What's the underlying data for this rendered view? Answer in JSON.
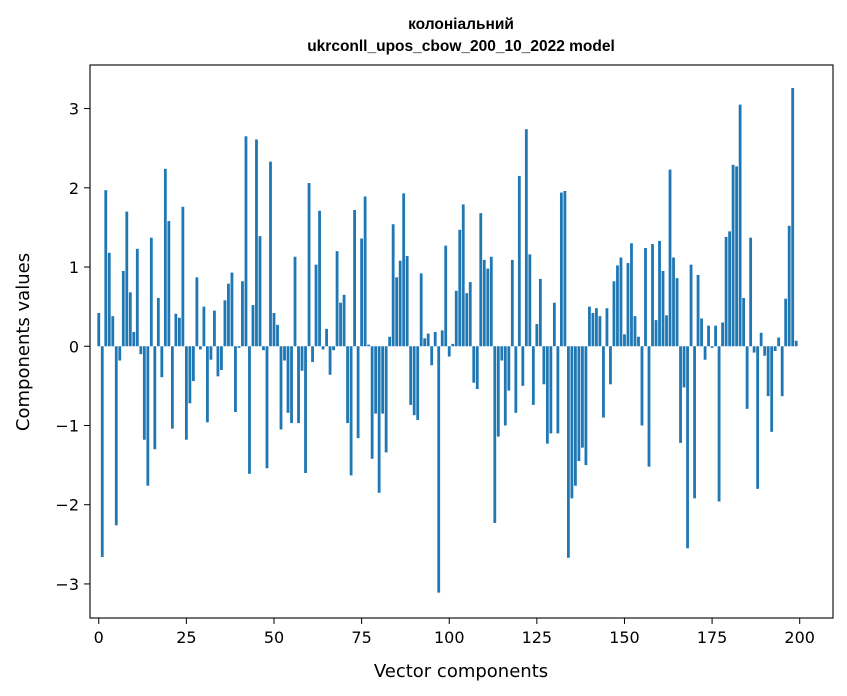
{
  "chart_data": {
    "type": "bar",
    "title": "колоніальний",
    "subtitle": "ukrconll_upos_cbow_200_10_2022 model",
    "xlabel": "Vector components",
    "ylabel": "Components values",
    "xlim": [
      -2.5,
      209.5
    ],
    "ylim": [
      -3.43,
      3.55
    ],
    "xticks": [
      0,
      25,
      50,
      75,
      100,
      125,
      150,
      175,
      200
    ],
    "xtick_labels": [
      "0",
      "25",
      "50",
      "75",
      "100",
      "125",
      "150",
      "175",
      "200"
    ],
    "yticks": [
      -3,
      -2,
      -1,
      0,
      1,
      2,
      3
    ],
    "ytick_labels": [
      "−3",
      "−2",
      "−1",
      "0",
      "1",
      "2",
      "3"
    ],
    "grid": false,
    "legend": "none",
    "color": "#1f77b4",
    "x": [
      0,
      1,
      2,
      3,
      4,
      5,
      6,
      7,
      8,
      9,
      10,
      11,
      12,
      13,
      14,
      15,
      16,
      17,
      18,
      19,
      20,
      21,
      22,
      23,
      24,
      25,
      26,
      27,
      28,
      29,
      30,
      31,
      32,
      33,
      34,
      35,
      36,
      37,
      38,
      39,
      40,
      41,
      42,
      43,
      44,
      45,
      46,
      47,
      48,
      49,
      50,
      51,
      52,
      53,
      54,
      55,
      56,
      57,
      58,
      59,
      60,
      61,
      62,
      63,
      64,
      65,
      66,
      67,
      68,
      69,
      70,
      71,
      72,
      73,
      74,
      75,
      76,
      77,
      78,
      79,
      80,
      81,
      82,
      83,
      84,
      85,
      86,
      87,
      88,
      89,
      90,
      91,
      92,
      93,
      94,
      95,
      96,
      97,
      98,
      99,
      100,
      101,
      102,
      103,
      104,
      105,
      106,
      107,
      108,
      109,
      110,
      111,
      112,
      113,
      114,
      115,
      116,
      117,
      118,
      119,
      120,
      121,
      122,
      123,
      124,
      125,
      126,
      127,
      128,
      129,
      130,
      131,
      132,
      133,
      134,
      135,
      136,
      137,
      138,
      139,
      140,
      141,
      142,
      143,
      144,
      145,
      146,
      147,
      148,
      149,
      150,
      151,
      152,
      153,
      154,
      155,
      156,
      157,
      158,
      159,
      160,
      161,
      162,
      163,
      164,
      165,
      166,
      167,
      168,
      169,
      170,
      171,
      172,
      173,
      174,
      175,
      176,
      177,
      178,
      179,
      180,
      181,
      182,
      183,
      184,
      185,
      186,
      187,
      188,
      189,
      190,
      191,
      192,
      193,
      194,
      195,
      196,
      197,
      198,
      199
    ],
    "values": [
      0.42,
      -2.66,
      1.97,
      1.18,
      0.38,
      -2.26,
      -0.18,
      0.95,
      1.7,
      0.68,
      0.18,
      1.23,
      -0.1,
      -1.18,
      -1.76,
      1.37,
      -1.3,
      0.61,
      -0.39,
      2.24,
      1.58,
      -1.04,
      0.41,
      0.36,
      1.76,
      -1.18,
      -0.72,
      -0.44,
      0.87,
      -0.04,
      0.5,
      -0.96,
      -0.17,
      0.45,
      -0.38,
      -0.3,
      0.58,
      0.79,
      0.93,
      -0.83,
      -0.02,
      0.82,
      2.65,
      -1.61,
      0.52,
      2.61,
      1.39,
      -0.05,
      -1.54,
      2.33,
      0.42,
      0.27,
      -1.05,
      -0.18,
      -0.84,
      -0.97,
      1.13,
      -0.97,
      -0.31,
      -1.6,
      2.06,
      -0.2,
      1.03,
      1.71,
      -0.04,
      0.22,
      -0.36,
      -0.05,
      1.2,
      0.55,
      0.65,
      -0.97,
      -1.63,
      1.72,
      -1.16,
      1.36,
      1.89,
      0.02,
      -1.42,
      -0.85,
      -1.85,
      -0.85,
      -1.34,
      0.12,
      1.54,
      0.87,
      1.08,
      1.93,
      1.14,
      -0.74,
      -0.87,
      -0.93,
      0.92,
      0.1,
      0.16,
      -0.24,
      0.18,
      -3.11,
      0.2,
      1.27,
      -0.13,
      0.03,
      0.7,
      1.47,
      1.79,
      0.67,
      0.81,
      -0.46,
      -0.54,
      1.68,
      1.09,
      0.98,
      1.13,
      -2.23,
      -1.14,
      -0.18,
      -1.0,
      -0.56,
      1.09,
      -0.84,
      2.15,
      -0.5,
      2.74,
      1.16,
      -0.74,
      0.28,
      0.85,
      -0.48,
      -1.23,
      -1.1,
      0.55,
      -1.1,
      1.94,
      1.96,
      -2.67,
      -1.92,
      -1.76,
      -1.45,
      -1.28,
      -1.5,
      0.5,
      0.42,
      0.48,
      0.38,
      -0.9,
      0.48,
      -0.48,
      0.82,
      1.02,
      1.12,
      0.15,
      1.05,
      1.3,
      0.38,
      0.12,
      -1.0,
      1.24,
      -1.52,
      1.29,
      0.33,
      1.33,
      0.95,
      0.39,
      2.23,
      1.12,
      0.86,
      -1.22,
      -0.52,
      -2.55,
      1.03,
      -1.92,
      0.9,
      0.35,
      -0.17,
      0.26,
      -0.02,
      0.26,
      -1.96,
      0.3,
      1.38,
      1.45,
      2.29,
      2.27,
      3.05,
      0.61,
      -0.79,
      1.37,
      -0.08,
      -1.8,
      0.17,
      -0.12,
      -0.63,
      -1.08,
      -0.06,
      0.11,
      -0.63,
      0.6,
      1.52,
      3.26,
      0.07
    ]
  }
}
